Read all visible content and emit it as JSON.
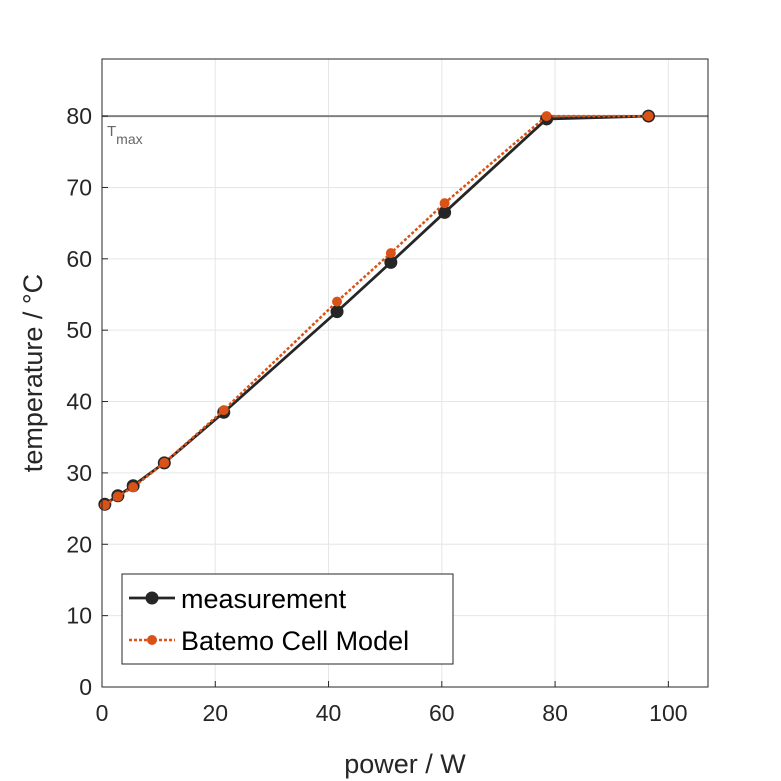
{
  "chart_data": {
    "type": "line",
    "title": "",
    "xlabel": "power / W",
    "ylabel": "temperature / °C",
    "xlim": [
      0,
      107
    ],
    "ylim": [
      0,
      88
    ],
    "xticks": [
      0,
      20,
      40,
      60,
      80,
      100
    ],
    "yticks": [
      0,
      10,
      20,
      30,
      40,
      50,
      60,
      70,
      80
    ],
    "grid": true,
    "legend_position": "bottom-left",
    "series": [
      {
        "name": "measurement",
        "color": "#262626",
        "line_style": "solid",
        "marker": "large-circle",
        "x": [
          0.5,
          2.8,
          5.5,
          11.0,
          21.5,
          41.5,
          51.0,
          60.5,
          78.5,
          96.5
        ],
        "y": [
          25.6,
          26.8,
          28.2,
          31.4,
          38.5,
          52.6,
          59.5,
          66.5,
          79.6,
          80.0
        ]
      },
      {
        "name": "Batemo Cell Model",
        "color": "#d95319",
        "line_style": "dotted",
        "marker": "small-circle",
        "x": [
          0.5,
          2.8,
          5.5,
          11.0,
          21.5,
          41.5,
          51.0,
          60.5,
          78.5,
          96.5
        ],
        "y": [
          25.5,
          26.7,
          28.0,
          31.4,
          38.8,
          54.0,
          60.8,
          67.8,
          80.0,
          80.0
        ]
      }
    ],
    "reference_lines": [
      {
        "y": 80,
        "color": "#808080",
        "label_main": "T",
        "label_sub": "max"
      }
    ]
  }
}
